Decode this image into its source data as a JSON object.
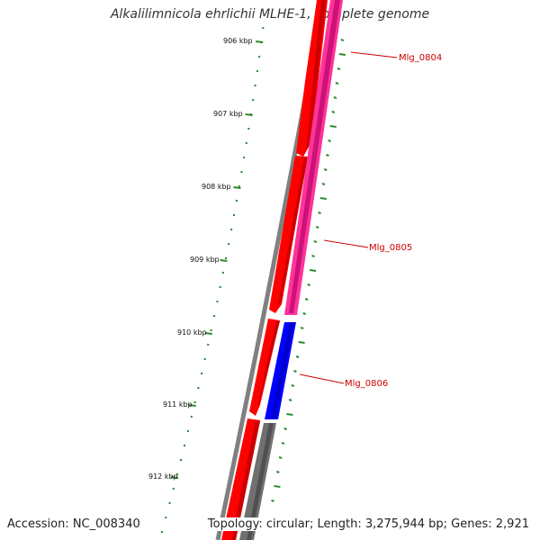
{
  "title": "Alkalilimnicola ehrlichii MLHE-1, complete genome",
  "footer": {
    "accession": "Accession: NC_008340",
    "summary": "Topology: circular; Length: 3,275,944 bp; Genes: 2,921"
  },
  "ruler": {
    "labels": [
      "906 kbp",
      "907 kbp",
      "908 kbp",
      "909 kbp",
      "910 kbp",
      "911 kbp",
      "912 kbp"
    ],
    "color": "#2e8b2e"
  },
  "genes": {
    "labels": [
      "Mlg_0804",
      "Mlg_0805",
      "Mlg_0806"
    ],
    "label_color": "#cc0000"
  },
  "colors": {
    "forward_cds": "#ff0000",
    "reverse_cds": "#ff3399",
    "reverse_cds_alt": "#0000ff",
    "other": "#707070",
    "backbone": "#808080"
  }
}
